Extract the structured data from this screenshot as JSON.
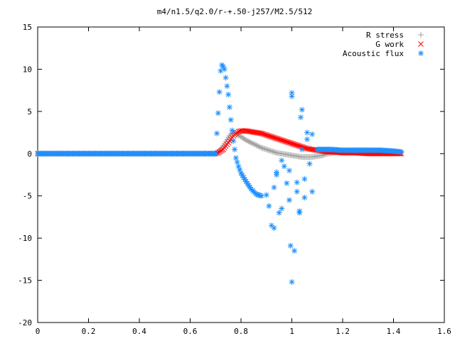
{
  "chart_data": {
    "type": "scatter",
    "title": "m4/n1.5/q2.0/r-+.50-j257/M2.5/512",
    "xlabel": "",
    "ylabel": "",
    "xlim": [
      0,
      1.6
    ],
    "ylim": [
      -20,
      15
    ],
    "x_ticks": [
      "0",
      "0.2",
      "0.4",
      "0.6",
      "0.8",
      "1",
      "1.2",
      "1.4",
      "1.6"
    ],
    "y_ticks": [
      "15",
      "10",
      "5",
      "0",
      "-5",
      "-10",
      "-15",
      "-20"
    ],
    "grid": false,
    "legend_position": "top-right",
    "series": [
      {
        "name": "R stress",
        "marker": "+",
        "color": "#a0a0a0",
        "x": [
          0.0,
          0.7,
          0.71,
          0.72,
          0.73,
          0.74,
          0.75,
          0.76,
          0.77,
          0.78,
          0.79,
          0.8,
          0.82,
          0.84,
          0.86,
          0.88,
          0.9,
          0.92,
          0.94,
          0.96,
          0.98,
          1.0,
          1.02,
          1.04,
          1.06,
          1.08,
          1.1,
          1.12,
          1.14,
          1.16,
          1.2,
          1.25,
          1.3,
          1.35,
          1.4,
          1.43
        ],
        "y": [
          0.0,
          0.0,
          0.2,
          0.5,
          0.9,
          1.4,
          1.9,
          2.3,
          2.5,
          2.4,
          2.2,
          2.0,
          1.6,
          1.3,
          1.0,
          0.7,
          0.5,
          0.3,
          0.1,
          0.0,
          -0.1,
          -0.2,
          -0.3,
          -0.4,
          -0.4,
          -0.4,
          -0.3,
          -0.2,
          0.0,
          0.1,
          0.3,
          0.4,
          0.4,
          0.3,
          0.2,
          0.1
        ]
      },
      {
        "name": "G work",
        "marker": "x",
        "color": "#ff0000",
        "x": [
          0.0,
          0.7,
          0.71,
          0.72,
          0.73,
          0.74,
          0.75,
          0.76,
          0.77,
          0.78,
          0.79,
          0.8,
          0.82,
          0.84,
          0.86,
          0.88,
          0.9,
          0.92,
          0.94,
          0.96,
          0.98,
          1.0,
          1.02,
          1.04,
          1.06,
          1.08,
          1.1,
          1.12,
          1.14,
          1.16,
          1.2,
          1.25,
          1.3,
          1.35,
          1.4,
          1.43
        ],
        "y": [
          0.0,
          0.0,
          0.1,
          0.3,
          0.5,
          0.9,
          1.3,
          1.7,
          2.1,
          2.4,
          2.6,
          2.7,
          2.7,
          2.6,
          2.5,
          2.4,
          2.2,
          2.0,
          1.8,
          1.6,
          1.4,
          1.2,
          1.0,
          0.8,
          0.6,
          0.5,
          0.4,
          0.3,
          0.2,
          0.2,
          0.1,
          0.1,
          0.0,
          0.0,
          0.0,
          0.0
        ]
      },
      {
        "name": "Acoustic flux",
        "marker": "*",
        "color": "#1e90ff",
        "x": [
          0.0,
          0.7,
          0.71,
          0.72,
          0.725,
          0.73,
          0.735,
          0.74,
          0.75,
          0.76,
          0.77,
          0.78,
          0.79,
          0.8,
          0.82,
          0.84,
          0.86,
          0.88,
          0.9,
          0.91,
          0.92,
          0.93,
          0.94,
          0.95,
          0.96,
          0.97,
          0.98,
          0.99,
          1.0,
          1.01,
          1.02,
          1.03,
          1.04,
          1.05,
          1.06,
          1.07,
          1.08,
          1.1,
          1.15,
          1.2,
          1.25,
          1.3,
          1.35,
          1.4,
          1.43
        ],
        "y": [
          0.0,
          0.0,
          4.8,
          9.8,
          10.5,
          10.3,
          10.0,
          9.0,
          7.0,
          4.0,
          1.5,
          -0.5,
          -1.5,
          -2.3,
          -3.3,
          -4.2,
          -4.8,
          -5.0,
          -4.9,
          -6.2,
          -8.5,
          -4.0,
          -2.5,
          -7.0,
          -6.5,
          -1.5,
          -3.5,
          -5.5,
          7.2,
          -11.5,
          -4.5,
          -6.8,
          5.2,
          -3.0,
          2.5,
          -1.2,
          -4.5,
          0.5,
          0.5,
          0.4,
          0.4,
          0.4,
          0.4,
          0.3,
          0.2
        ],
        "extra_points": [
          {
            "x": 0.995,
            "y": -10.9
          },
          {
            "x": 1.0,
            "y": -15.2
          },
          {
            "x": 1.0,
            "y": 6.8
          },
          {
            "x": 1.035,
            "y": 4.3
          },
          {
            "x": 1.06,
            "y": 1.7
          },
          {
            "x": 1.02,
            "y": -3.4
          },
          {
            "x": 1.03,
            "y": -7.0
          },
          {
            "x": 0.93,
            "y": -8.8
          },
          {
            "x": 0.94,
            "y": -2.2
          },
          {
            "x": 0.96,
            "y": -0.8
          },
          {
            "x": 1.08,
            "y": 2.3
          },
          {
            "x": 1.04,
            "y": 0.5
          },
          {
            "x": 1.05,
            "y": -5.2
          },
          {
            "x": 0.99,
            "y": -2.0
          }
        ]
      }
    ]
  }
}
